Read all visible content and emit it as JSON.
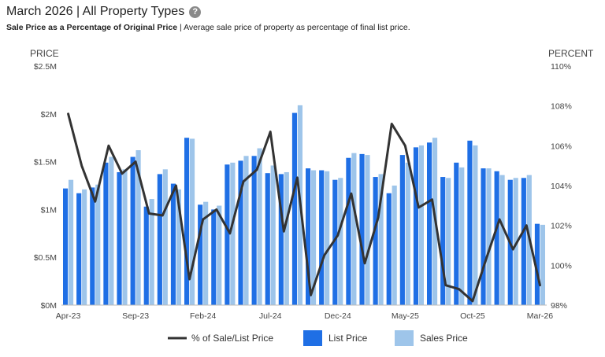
{
  "header": {
    "title": "March 2026 | All Property Types",
    "help_icon": "question-circle-icon",
    "subtitle_bold": "Sale Price as a Percentage of Original Price",
    "subtitle_rest": " | Average sale price of property as percentage of final list price."
  },
  "chart_data": {
    "type": "bar",
    "left_axis_title": "PRICE",
    "right_axis_title": "PERCENT",
    "left_ticks": [
      "$0M",
      "$0.5M",
      "$1M",
      "$1.5M",
      "$2M",
      "$2.5M"
    ],
    "right_ticks": [
      "98%",
      "100%",
      "102%",
      "104%",
      "106%",
      "108%",
      "110%"
    ],
    "left_range": [
      0,
      2.5
    ],
    "right_range": [
      98,
      110
    ],
    "x_tick_labels": [
      "Apr-23",
      "Sep-23",
      "Feb-24",
      "Jul-24",
      "Dec-24",
      "May-25",
      "Oct-25",
      "Mar-26"
    ],
    "categories": [
      "Apr-23",
      "May-23",
      "Jun-23",
      "Jul-23",
      "Aug-23",
      "Sep-23",
      "Oct-23",
      "Nov-23",
      "Dec-23",
      "Jan-24",
      "Feb-24",
      "Mar-24",
      "Apr-24",
      "May-24",
      "Jun-24",
      "Jul-24",
      "Aug-24",
      "Sep-24",
      "Oct-24",
      "Nov-24",
      "Dec-24",
      "Jan-25",
      "Feb-25",
      "Mar-25",
      "Apr-25",
      "May-25",
      "Jun-25",
      "Jul-25",
      "Aug-25",
      "Sep-25",
      "Oct-25",
      "Nov-25",
      "Dec-25",
      "Jan-26",
      "Feb-26",
      "Mar-26"
    ],
    "series": [
      {
        "name": "List Price",
        "color": "#1f6fe5",
        "values": [
          1.22,
          1.17,
          1.23,
          1.49,
          1.39,
          1.55,
          1.03,
          1.37,
          1.27,
          1.75,
          1.05,
          1.0,
          1.47,
          1.51,
          1.56,
          1.38,
          1.37,
          2.01,
          1.43,
          1.41,
          1.31,
          1.54,
          1.58,
          1.34,
          1.17,
          1.57,
          1.65,
          1.7,
          1.34,
          1.49,
          1.72,
          1.43,
          1.4,
          1.31,
          1.33,
          0.85
        ]
      },
      {
        "name": "Sales Price",
        "color": "#9ec5ea",
        "values": [
          1.31,
          1.21,
          1.26,
          1.55,
          1.42,
          1.62,
          1.11,
          1.42,
          1.21,
          1.74,
          1.08,
          1.04,
          1.49,
          1.56,
          1.64,
          1.46,
          1.39,
          2.09,
          1.41,
          1.4,
          1.33,
          1.59,
          1.57,
          1.37,
          1.25,
          1.49,
          1.67,
          1.75,
          1.33,
          1.44,
          1.67,
          1.43,
          1.36,
          1.33,
          1.36,
          0.84
        ]
      },
      {
        "name": "% of Sale/List Price",
        "color": "#333333",
        "values": [
          107.6,
          105.0,
          103.2,
          106.0,
          104.6,
          105.2,
          102.6,
          102.5,
          104.0,
          99.3,
          102.3,
          102.8,
          101.6,
          104.2,
          104.8,
          106.7,
          101.7,
          104.4,
          98.5,
          100.5,
          101.5,
          103.6,
          100.1,
          102.4,
          107.1,
          106.0,
          102.9,
          103.3,
          99.0,
          98.8,
          98.2,
          100.3,
          102.3,
          100.8,
          102.0,
          99.0
        ]
      }
    ],
    "legend_position": "bottom"
  }
}
